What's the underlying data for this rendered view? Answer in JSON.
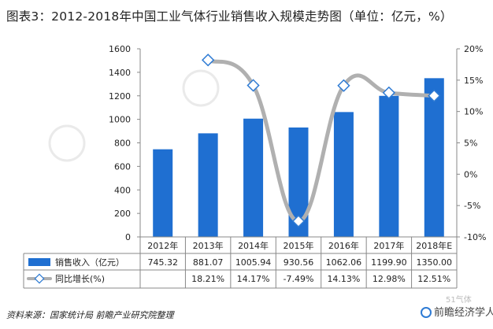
{
  "title": "图表3：2012-2018年中国工业气体行业销售收入规模走势图（单位：亿元，%）",
  "source": "资料来源：国家统计局  前瞻产业研究院整理",
  "brand": "前瞻经济学人APP",
  "watermark_corner": "51气体",
  "chart_data": {
    "type": "bar",
    "categories": [
      "2012年",
      "2013年",
      "2014年",
      "2015年",
      "2016年",
      "2017年",
      "2018年E"
    ],
    "series": [
      {
        "name": "销售收入（亿元）",
        "type": "bar",
        "axis": "left",
        "color": "#1f6fd1",
        "values": [
          745.32,
          881.07,
          1005.94,
          930.56,
          1062.06,
          1199.9,
          1350.0
        ],
        "labels": [
          "745.32",
          "881.07",
          "1005.94",
          "930.56",
          "1062.06",
          "1199.90",
          "1350.00"
        ]
      },
      {
        "name": "同比增长(%)",
        "type": "line",
        "axis": "right",
        "color": "#b0b0b0",
        "values": [
          null,
          18.21,
          14.17,
          -7.49,
          14.13,
          12.98,
          12.51
        ],
        "labels": [
          "",
          "18.21%",
          "14.17%",
          "-7.49%",
          "14.13%",
          "12.98%",
          "12.51%"
        ]
      }
    ],
    "y_left": {
      "min": 0,
      "max": 1600,
      "step": 200,
      "ticks": [
        "0",
        "200",
        "400",
        "600",
        "800",
        "1000",
        "1200",
        "1400",
        "1600"
      ]
    },
    "y_right": {
      "min": -10,
      "max": 20,
      "step": 5,
      "ticks": [
        "-10%",
        "-5%",
        "0%",
        "5%",
        "10%",
        "15%",
        "20%"
      ]
    },
    "grid": false,
    "legend": "table-bottom"
  }
}
